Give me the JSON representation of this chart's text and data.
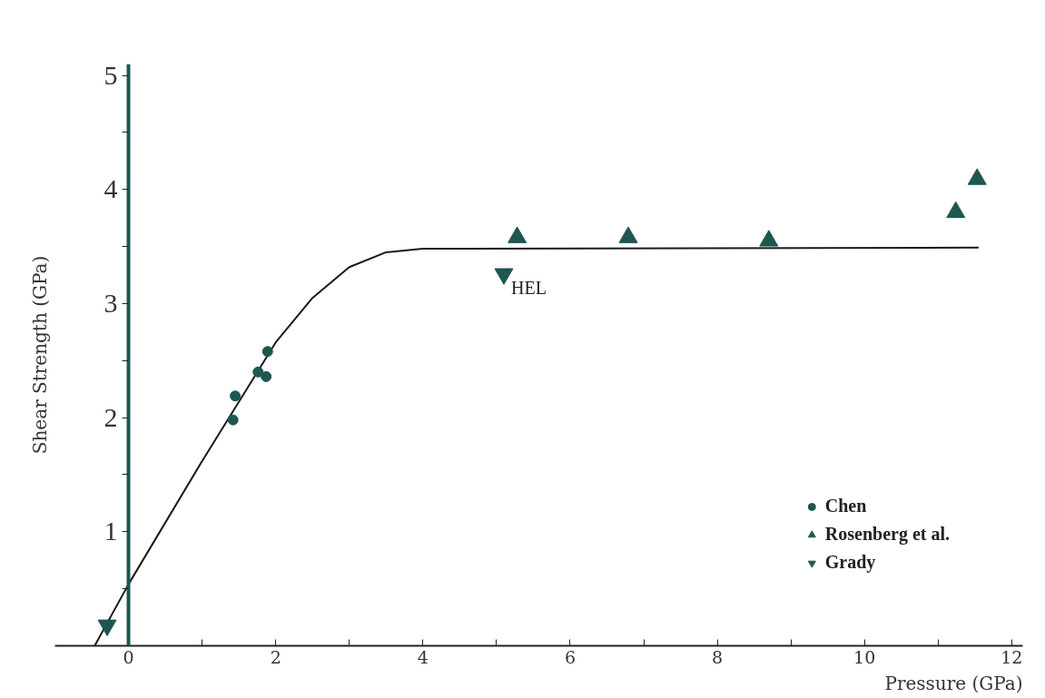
{
  "chart_data": {
    "type": "scatter",
    "xlabel": "Pressure (GPa)",
    "ylabel": "Shear Strength (GPa)",
    "xlim": [
      -1,
      12.15
    ],
    "ylim": [
      0,
      5.1
    ],
    "xticks": [
      0,
      {
        "value": 1,
        "label": null
      },
      2,
      {
        "value": 3,
        "label": null
      },
      4,
      {
        "value": 5,
        "label": null
      },
      6,
      {
        "value": 7,
        "label": null
      },
      8,
      {
        "value": 9,
        "label": null
      },
      10,
      {
        "value": 11,
        "label": null
      },
      12
    ],
    "yticks": [
      {
        "value": 0.5,
        "label": null
      },
      1,
      {
        "value": 1.5,
        "label": null
      },
      2,
      {
        "value": 2.5,
        "label": null
      },
      3,
      {
        "value": 3.5,
        "label": null
      },
      4,
      {
        "value": 4.5,
        "label": null
      },
      5
    ],
    "grid": false,
    "legend": "bottom right",
    "series": [
      {
        "type": "line",
        "color": "#1a1a1a",
        "marker": "none",
        "x": [
          -0.46,
          0,
          1,
          2,
          2.5,
          3,
          3.5,
          4,
          11.55
        ],
        "values": [
          0,
          0.54,
          1.62,
          2.66,
          3.05,
          3.32,
          3.45,
          3.48,
          3.49
        ]
      },
      {
        "name": "Chen",
        "color": "#1e5750",
        "marker": "circle",
        "x": [
          1.42,
          1.45,
          1.76,
          1.87,
          1.89
        ],
        "values": [
          1.98,
          2.19,
          2.4,
          2.36,
          2.58
        ]
      },
      {
        "name": "Rosenberg et al.",
        "color": "#1e5750",
        "marker": "triangle",
        "x": [
          5.28,
          6.79,
          8.7,
          11.24,
          11.53
        ],
        "values": [
          3.58,
          3.58,
          3.55,
          3.8,
          4.09
        ]
      },
      {
        "name": "Grady",
        "color": "#1e5750",
        "x": [
          -0.29,
          5.1
        ],
        "values": [
          0.18,
          3.26
        ]
      }
    ],
    "annotations": [
      {
        "text": "HEL",
        "x": 5.1,
        "y": 3.26
      }
    ]
  }
}
